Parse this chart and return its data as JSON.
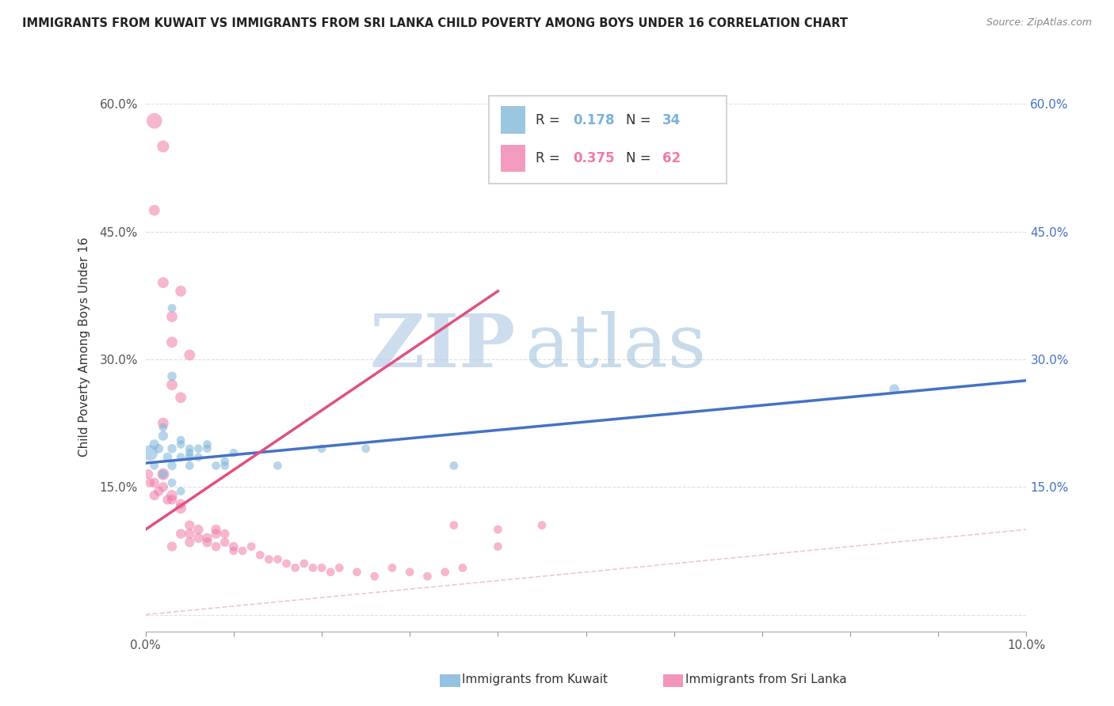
{
  "title": "IMMIGRANTS FROM KUWAIT VS IMMIGRANTS FROM SRI LANKA CHILD POVERTY AMONG BOYS UNDER 16 CORRELATION CHART",
  "source": "Source: ZipAtlas.com",
  "ylabel": "Child Poverty Among Boys Under 16",
  "legend1": "Immigrants from Kuwait",
  "legend2": "Immigrants from Sri Lanka",
  "r1": 0.178,
  "n1": 34,
  "r2": 0.375,
  "n2": 62,
  "color1": "#7ab3d9",
  "color2": "#f07aaa",
  "xlim": [
    0.0,
    0.1
  ],
  "ylim": [
    -0.02,
    0.65
  ],
  "yticks": [
    0.0,
    0.15,
    0.3,
    0.45,
    0.6
  ],
  "ytick_labels_left": [
    "",
    "15.0%",
    "30.0%",
    "45.0%",
    "60.0%"
  ],
  "ytick_labels_right": [
    "",
    "15.0%",
    "30.0%",
    "45.0%",
    "60.0%"
  ],
  "xticks": [
    0.0,
    0.01,
    0.02,
    0.03,
    0.04,
    0.05,
    0.06,
    0.07,
    0.08,
    0.09,
    0.1
  ],
  "xtick_labels": [
    "0.0%",
    "",
    "",
    "",
    "",
    "",
    "",
    "",
    "",
    "",
    "10.0%"
  ],
  "watermark_zip": "ZIP",
  "watermark_atlas": "atlas",
  "background_color": "#ffffff",
  "scatter1_x": [
    0.0005,
    0.001,
    0.0015,
    0.002,
    0.0025,
    0.001,
    0.002,
    0.003,
    0.004,
    0.002,
    0.003,
    0.004,
    0.005,
    0.003,
    0.004,
    0.005,
    0.006,
    0.003,
    0.004,
    0.005,
    0.006,
    0.007,
    0.008,
    0.009,
    0.01,
    0.003,
    0.005,
    0.007,
    0.009,
    0.015,
    0.02,
    0.025,
    0.085,
    0.035
  ],
  "scatter1_y": [
    0.19,
    0.2,
    0.195,
    0.21,
    0.185,
    0.175,
    0.165,
    0.155,
    0.145,
    0.22,
    0.28,
    0.205,
    0.195,
    0.195,
    0.2,
    0.185,
    0.195,
    0.175,
    0.185,
    0.175,
    0.185,
    0.2,
    0.175,
    0.18,
    0.19,
    0.36,
    0.19,
    0.195,
    0.175,
    0.175,
    0.195,
    0.195,
    0.265,
    0.175
  ],
  "scatter1_sizes": [
    200,
    80,
    70,
    80,
    70,
    60,
    70,
    60,
    60,
    60,
    70,
    60,
    60,
    70,
    60,
    60,
    60,
    70,
    60,
    60,
    60,
    60,
    60,
    60,
    60,
    60,
    60,
    60,
    60,
    60,
    60,
    60,
    80,
    60
  ],
  "scatter2_x": [
    0.0003,
    0.0005,
    0.001,
    0.001,
    0.0015,
    0.002,
    0.002,
    0.0025,
    0.003,
    0.003,
    0.003,
    0.004,
    0.004,
    0.004,
    0.005,
    0.005,
    0.005,
    0.006,
    0.006,
    0.007,
    0.007,
    0.008,
    0.008,
    0.008,
    0.009,
    0.009,
    0.01,
    0.01,
    0.011,
    0.012,
    0.013,
    0.014,
    0.015,
    0.016,
    0.017,
    0.018,
    0.019,
    0.02,
    0.021,
    0.022,
    0.024,
    0.026,
    0.028,
    0.03,
    0.032,
    0.034,
    0.036,
    0.04,
    0.045,
    0.001,
    0.002,
    0.003,
    0.004,
    0.005,
    0.002,
    0.003,
    0.004,
    0.003,
    0.002,
    0.001,
    0.035,
    0.04
  ],
  "scatter2_y": [
    0.165,
    0.155,
    0.155,
    0.14,
    0.145,
    0.165,
    0.15,
    0.135,
    0.14,
    0.135,
    0.08,
    0.125,
    0.13,
    0.095,
    0.085,
    0.095,
    0.105,
    0.09,
    0.1,
    0.09,
    0.085,
    0.095,
    0.1,
    0.08,
    0.085,
    0.095,
    0.08,
    0.075,
    0.075,
    0.08,
    0.07,
    0.065,
    0.065,
    0.06,
    0.055,
    0.06,
    0.055,
    0.055,
    0.05,
    0.055,
    0.05,
    0.045,
    0.055,
    0.05,
    0.045,
    0.05,
    0.055,
    0.08,
    0.105,
    0.475,
    0.55,
    0.32,
    0.38,
    0.305,
    0.225,
    0.27,
    0.255,
    0.35,
    0.39,
    0.58,
    0.105,
    0.1
  ],
  "scatter2_sizes": [
    80,
    70,
    80,
    80,
    80,
    120,
    80,
    80,
    100,
    80,
    80,
    100,
    80,
    80,
    80,
    80,
    80,
    80,
    80,
    80,
    80,
    80,
    80,
    70,
    70,
    70,
    70,
    60,
    60,
    60,
    60,
    60,
    60,
    60,
    60,
    60,
    60,
    60,
    60,
    60,
    60,
    60,
    60,
    60,
    60,
    60,
    60,
    60,
    60,
    100,
    120,
    100,
    100,
    100,
    100,
    100,
    100,
    100,
    100,
    200,
    60,
    60
  ],
  "regline1_x": [
    0.0,
    0.1
  ],
  "regline1_y": [
    0.178,
    0.275
  ],
  "regline2_x": [
    0.0,
    0.04
  ],
  "regline2_y": [
    0.1,
    0.38
  ],
  "refline_x": [
    0.0,
    0.65
  ],
  "refline_y": [
    0.0,
    0.65
  ]
}
